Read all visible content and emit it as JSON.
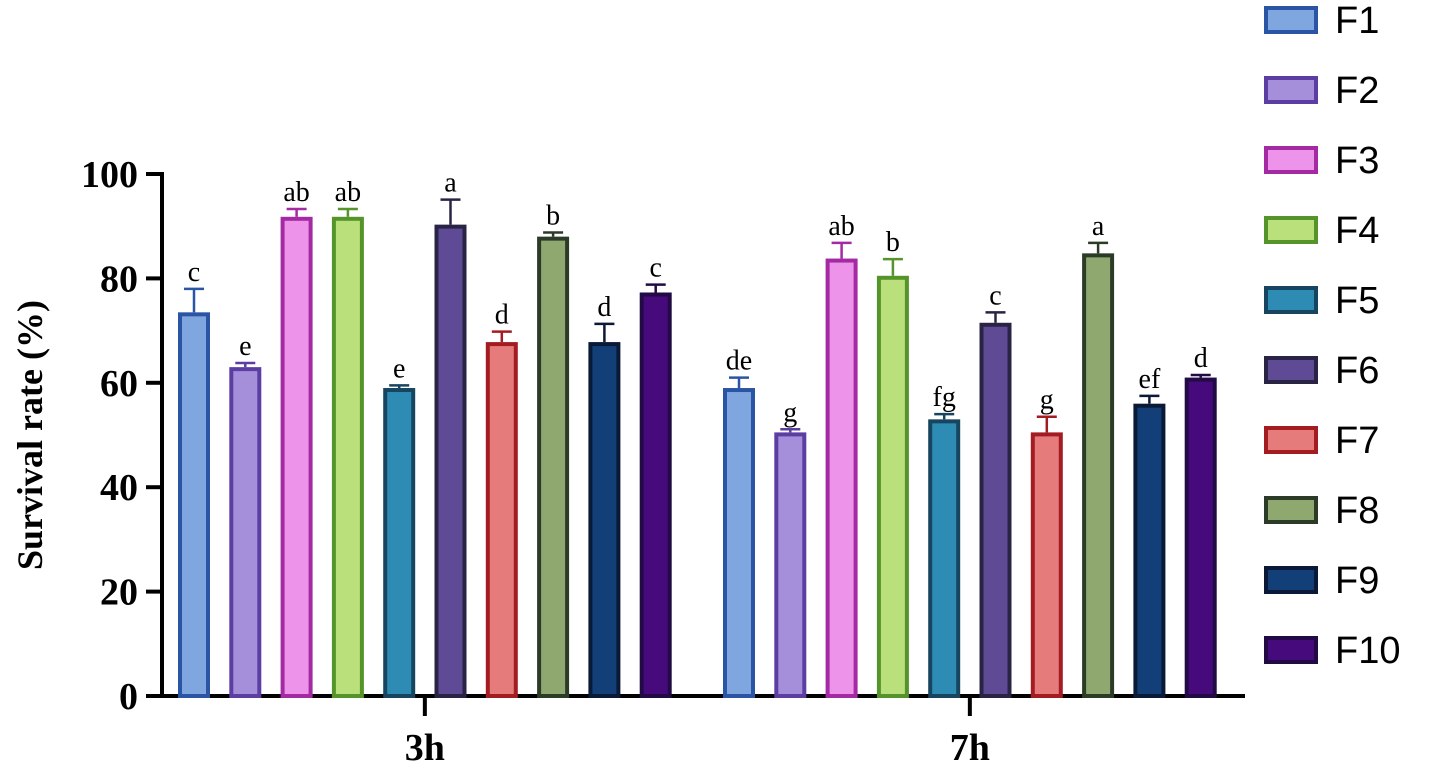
{
  "chart_data": {
    "type": "bar",
    "title": "",
    "xlabel": "",
    "ylabel": "Survival rate (%)",
    "ylim": [
      0,
      100
    ],
    "yticks": [
      0,
      20,
      40,
      60,
      80,
      100
    ],
    "grid": false,
    "legend_position": "right",
    "categories": [
      "3h",
      "7h"
    ],
    "series": [
      {
        "name": "F1",
        "values": [
          73.5,
          59.0
        ],
        "errors": [
          4.5,
          2.0
        ],
        "letters": [
          "c",
          "de"
        ],
        "fill": "#7fa6df",
        "stroke": "#2a54a4"
      },
      {
        "name": "F2",
        "values": [
          63.0,
          50.5
        ],
        "errors": [
          0.8,
          0.6
        ],
        "letters": [
          "e",
          "g"
        ],
        "fill": "#a58fdb",
        "stroke": "#5c3ea3"
      },
      {
        "name": "F3",
        "values": [
          91.8,
          83.8
        ],
        "errors": [
          1.5,
          3.0
        ],
        "letters": [
          "ab",
          "ab"
        ],
        "fill": "#ed93ea",
        "stroke": "#a32aa3"
      },
      {
        "name": "F4",
        "values": [
          91.8,
          80.5
        ],
        "errors": [
          1.5,
          3.2
        ],
        "letters": [
          "ab",
          "b"
        ],
        "fill": "#b9e07a",
        "stroke": "#55942a"
      },
      {
        "name": "F5",
        "values": [
          59.0,
          53.0
        ],
        "errors": [
          0.5,
          1.0
        ],
        "letters": [
          "e",
          "fg"
        ],
        "fill": "#2e8bb4",
        "stroke": "#17455f"
      },
      {
        "name": "F6",
        "values": [
          90.3,
          71.5
        ],
        "errors": [
          4.8,
          2.0
        ],
        "letters": [
          "a",
          "c"
        ],
        "fill": "#5f4a96",
        "stroke": "#2a2444"
      },
      {
        "name": "F7",
        "values": [
          67.8,
          50.5
        ],
        "errors": [
          2.0,
          3.0
        ],
        "letters": [
          "d",
          "g"
        ],
        "fill": "#e67b7b",
        "stroke": "#a31c22"
      },
      {
        "name": "F8",
        "values": [
          88.0,
          84.8
        ],
        "errors": [
          0.8,
          2.0
        ],
        "letters": [
          "b",
          "a"
        ],
        "fill": "#8fa86f",
        "stroke": "#2c3b28"
      },
      {
        "name": "F9",
        "values": [
          67.8,
          56.0
        ],
        "errors": [
          3.5,
          1.5
        ],
        "letters": [
          "d",
          "ef"
        ],
        "fill": "#123f78",
        "stroke": "#0a1a36"
      },
      {
        "name": "F10",
        "values": [
          77.3,
          61.0
        ],
        "errors": [
          1.5,
          0.5
        ],
        "letters": [
          "c",
          "d"
        ],
        "fill": "#460a7d",
        "stroke": "#220a44"
      }
    ]
  }
}
